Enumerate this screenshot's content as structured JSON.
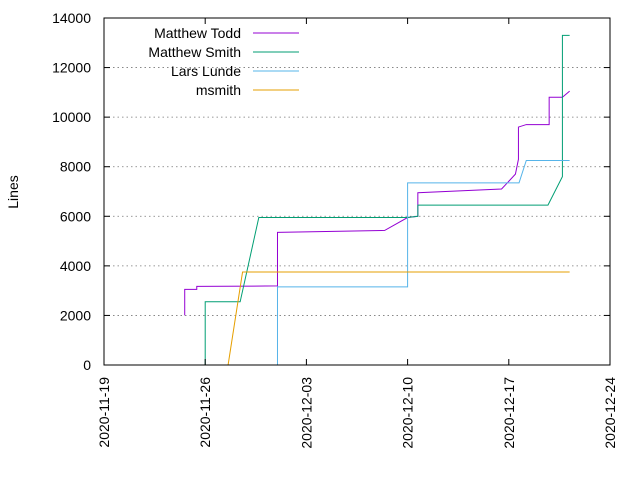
{
  "chart_data": {
    "type": "line",
    "title": "",
    "xlabel": "",
    "ylabel": "Lines",
    "ylim": [
      0,
      14000
    ],
    "xlim": [
      "2020-11-19",
      "2020-12-24"
    ],
    "yticks": [
      0,
      2000,
      4000,
      6000,
      8000,
      10000,
      12000,
      14000
    ],
    "yticks_labels": [
      "0",
      "2000",
      "4000",
      "6000",
      "8000",
      "10000",
      "12000",
      "14000"
    ],
    "xticks": [
      "2020-11-19",
      "2020-11-26",
      "2020-12-03",
      "2020-12-10",
      "2020-12-17",
      "2020-12-24"
    ],
    "grid": "horizontal dotted",
    "legend_position": "top-left",
    "series": [
      {
        "name": "Matthew Todd",
        "color": "#9400d3",
        "points": [
          [
            "2020-11-24 14:00",
            2000
          ],
          [
            "2020-11-24 14:00",
            3050
          ],
          [
            "2020-11-25 10:00",
            3050
          ],
          [
            "2020-11-25 10:00",
            3170
          ],
          [
            "2020-12-01 00:00",
            3190
          ],
          [
            "2020-12-01 00:00",
            5350
          ],
          [
            "2020-12-08 10:00",
            5430
          ],
          [
            "2020-12-10 00:00",
            5950
          ],
          [
            "2020-12-10 17:00",
            6000
          ],
          [
            "2020-12-10 17:00",
            6950
          ],
          [
            "2020-12-16 12:00",
            7100
          ],
          [
            "2020-12-17 11:00",
            7700
          ],
          [
            "2020-12-17 16:00",
            8300
          ],
          [
            "2020-12-17 16:00",
            9600
          ],
          [
            "2020-12-18 05:00",
            9700
          ],
          [
            "2020-12-19 19:00",
            9700
          ],
          [
            "2020-12-19 19:00",
            10800
          ],
          [
            "2020-12-20 17:00",
            10800
          ],
          [
            "2020-12-21 05:00",
            11050
          ]
        ]
      },
      {
        "name": "Matthew Smith",
        "color": "#009e73",
        "points": [
          [
            "2020-11-26 00:00",
            0
          ],
          [
            "2020-11-26 00:00",
            2550
          ],
          [
            "2020-11-28 10:00",
            2550
          ],
          [
            "2020-11-29 17:00",
            5950
          ],
          [
            "2020-12-10 00:00",
            5950
          ],
          [
            "2020-12-10 17:00",
            6000
          ],
          [
            "2020-12-10 17:00",
            6450
          ],
          [
            "2020-12-19 17:00",
            6450
          ],
          [
            "2020-12-20 17:00",
            7600
          ],
          [
            "2020-12-20 17:00",
            13300
          ],
          [
            "2020-12-21 05:00",
            13300
          ]
        ]
      },
      {
        "name": "Lars Lunde",
        "color": "#56b4e9",
        "points": [
          [
            "2020-12-01 00:00",
            0
          ],
          [
            "2020-12-01 00:00",
            3150
          ],
          [
            "2020-12-10 00:00",
            3150
          ],
          [
            "2020-12-10 00:00",
            7350
          ],
          [
            "2020-12-17 17:00",
            7350
          ],
          [
            "2020-12-18 05:00",
            8250
          ],
          [
            "2020-12-21 05:00",
            8250
          ]
        ]
      },
      {
        "name": "msmith",
        "color": "#e69f00",
        "points": [
          [
            "2020-11-27 14:00",
            0
          ],
          [
            "2020-11-28 14:00",
            3750
          ],
          [
            "2020-12-21 05:00",
            3750
          ]
        ]
      }
    ]
  }
}
